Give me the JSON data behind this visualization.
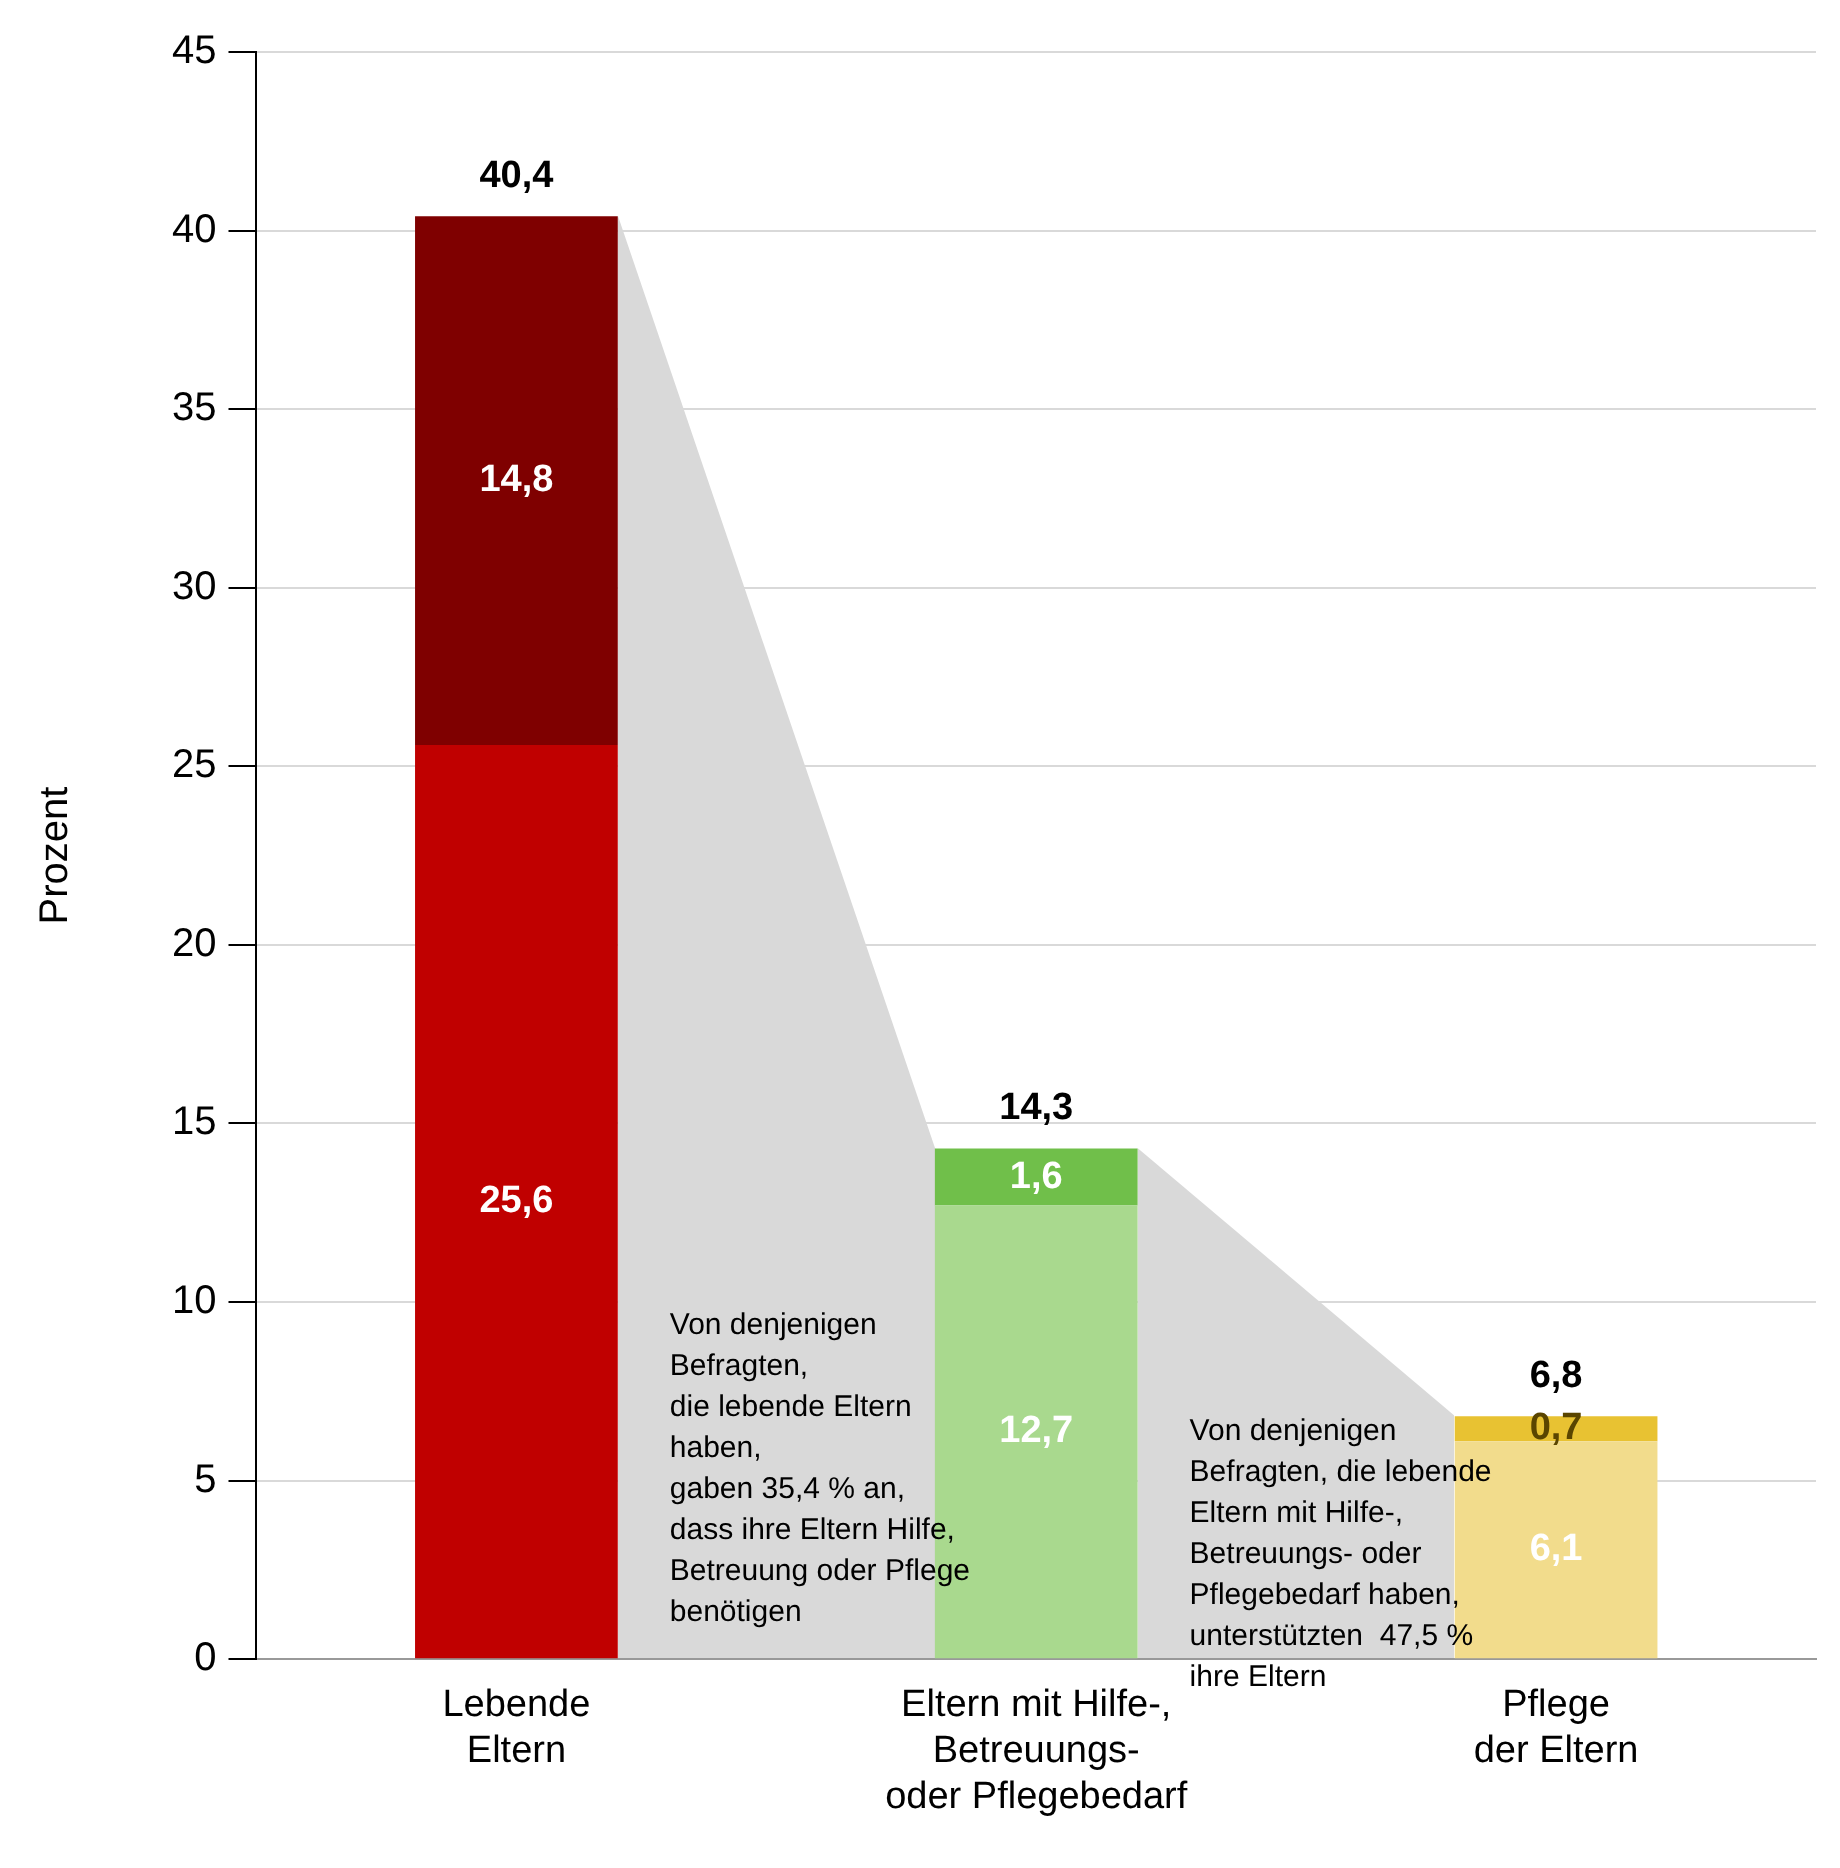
{
  "chart_data": {
    "type": "bar",
    "stacked": true,
    "ylabel": "Prozent",
    "categories": [
      "Lebende\nEltern",
      "Eltern mit Hilfe-,\nBetreuungs-\noder Pflegebedarf",
      "Pflege\nder Eltern"
    ],
    "series": [
      {
        "colors": [
          "#c00000",
          "#a9d98e",
          "#f2dc8c"
        ],
        "values": [
          25.6,
          12.7,
          6.1
        ],
        "value_labels": [
          "25,6",
          "12,7",
          "6,1"
        ]
      },
      {
        "colors": [
          "#7f0000",
          "#70bf4a",
          "#e8c232"
        ],
        "values": [
          14.8,
          1.6,
          0.7
        ],
        "value_labels": [
          "14,8",
          "1,6",
          "0,7"
        ]
      }
    ],
    "totals": [
      "40,4",
      "14,3",
      "6,8"
    ],
    "ylim": [
      0,
      45
    ],
    "yticks": [
      0,
      5,
      10,
      15,
      20,
      25,
      30,
      35,
      40,
      45
    ],
    "grid": "y",
    "legend": false,
    "annotations": [
      "Von denjenigen\nBefragten,\ndie lebende Eltern\nhaben,\ngaben 35,4 % an,\ndass ihre Eltern Hilfe,\nBetreuung oder Pflege\nbenötigen",
      "Von denjenigen\nBefragten, die lebende\nEltern mit Hilfe-,\nBetreuungs- oder\nPflegebedarf haben,\nunterstützten  47,5 %\nihre Eltern"
    ]
  }
}
